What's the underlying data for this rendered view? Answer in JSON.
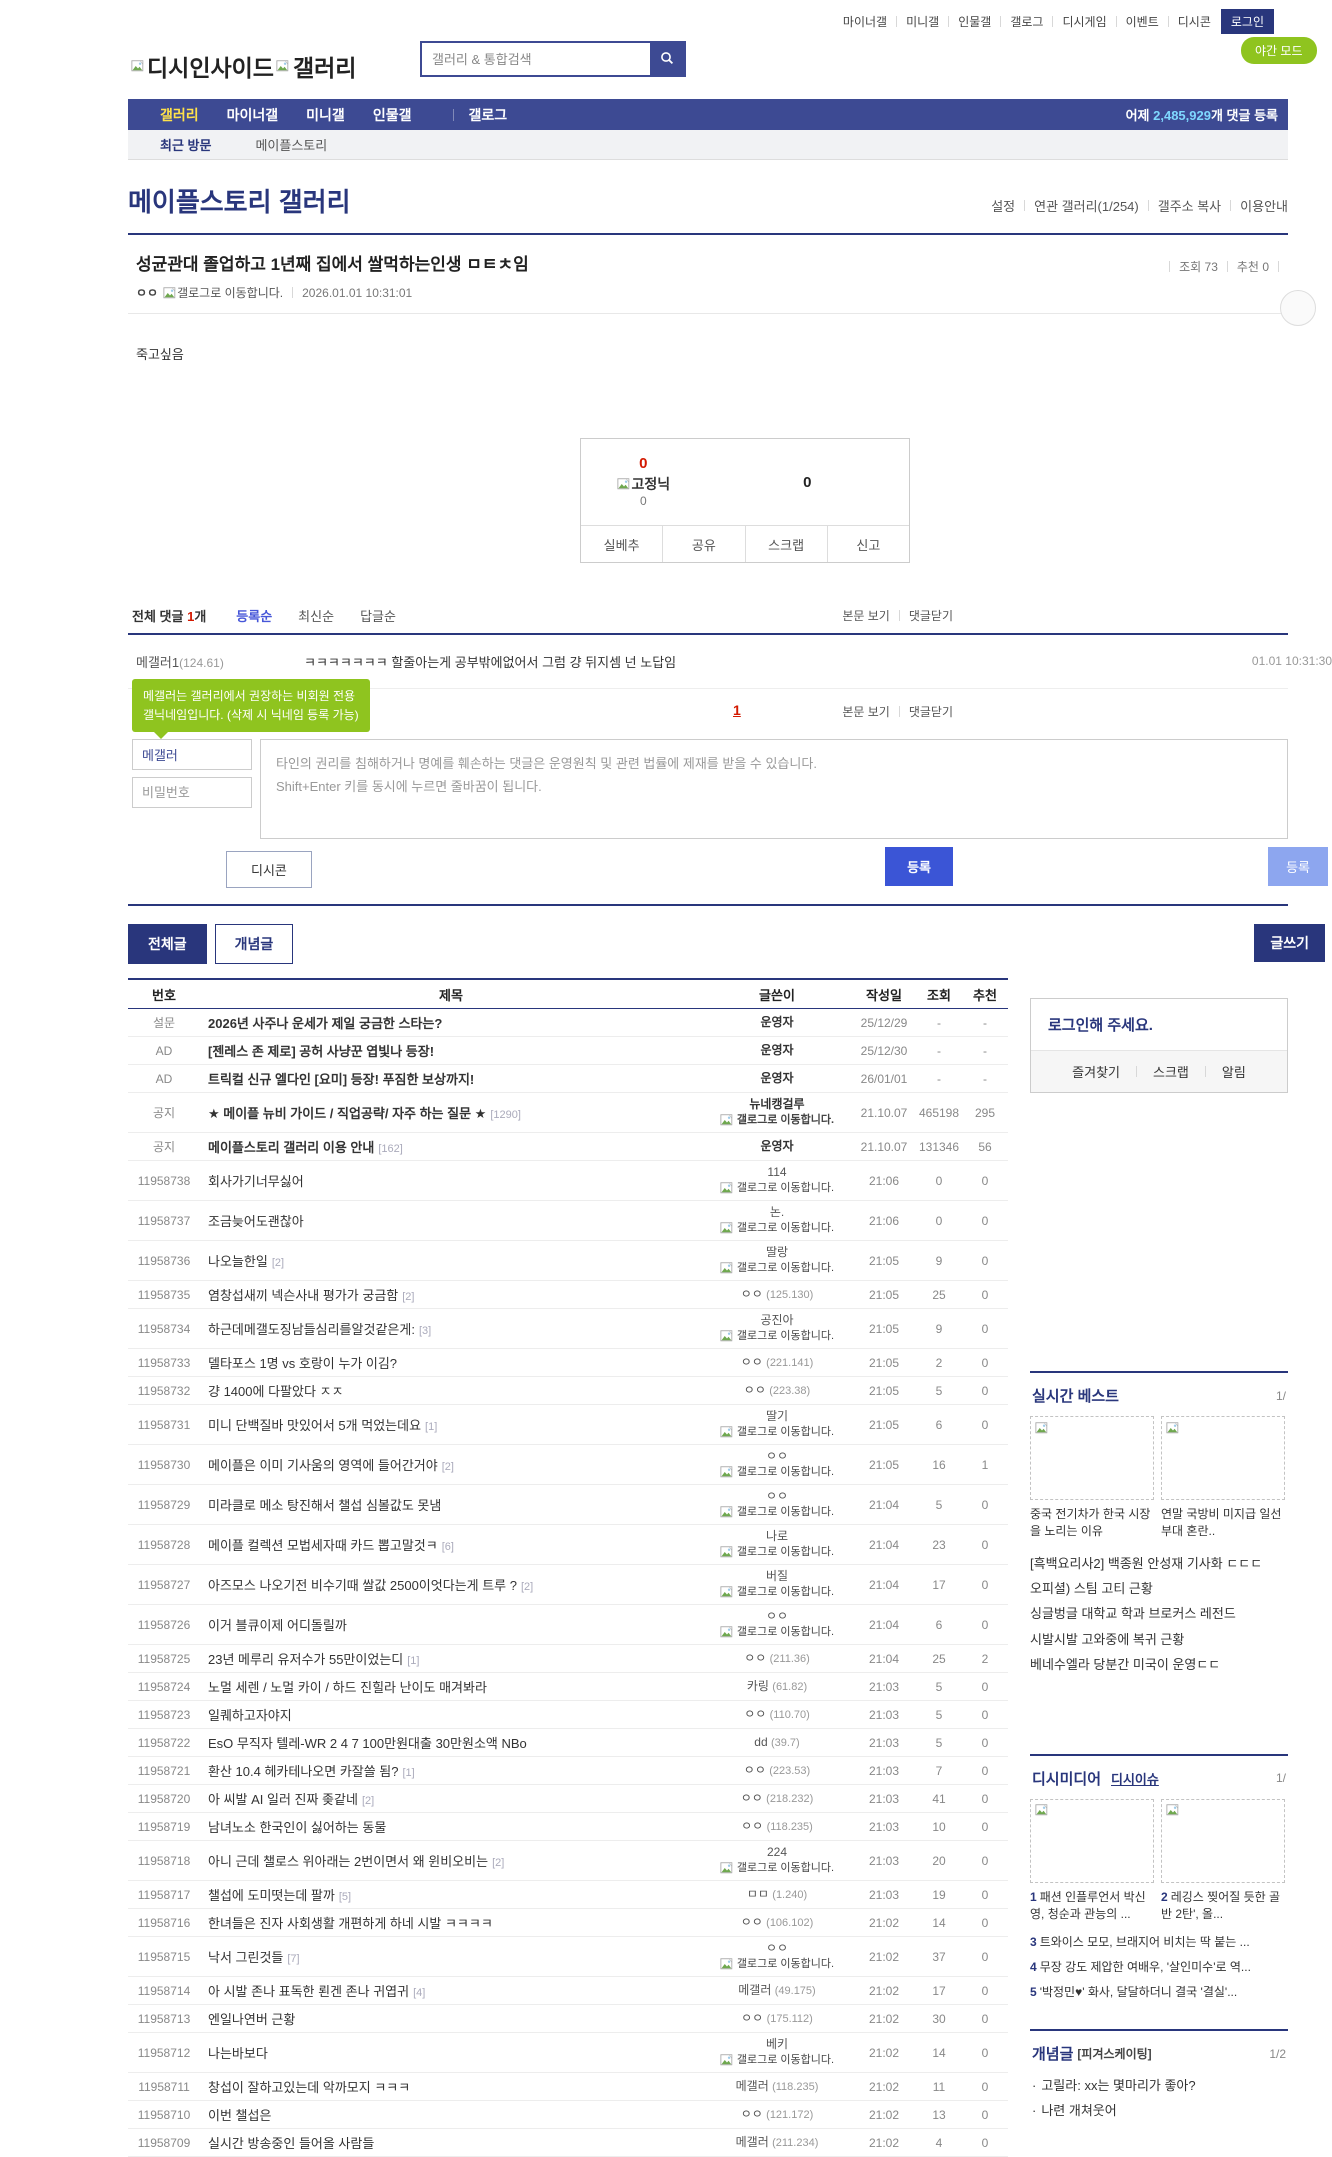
{
  "topbar": {
    "links": [
      "마이너갤",
      "미니갤",
      "인물갤",
      "갤로그",
      "디시게임",
      "이벤트",
      "디시콘"
    ],
    "login_label": "로그인",
    "night_mode_label": "야간 모드"
  },
  "header": {
    "logo_text_1": "디시인사이드",
    "logo_text_2": "갤러리",
    "search_placeholder": "갤러리 & 통합검색"
  },
  "nav": {
    "items": [
      "갤러리",
      "마이너갤",
      "미니갤",
      "인물갤",
      "갤로그"
    ],
    "active_item": "갤러리",
    "yesterday_prefix": "어제",
    "comment_count": "2,485,929",
    "yesterday_suffix": "개 댓글 등록"
  },
  "visited": {
    "label": "최근 방문",
    "items": [
      "메이플스토리"
    ]
  },
  "gallery": {
    "title": "메이플스토리 갤러리",
    "links": [
      "설정",
      "연관 갤러리(1/254)",
      "갤주소 복사",
      "이용안내"
    ]
  },
  "post": {
    "title": "성균관대 졸업하고 1년째 집에서 쌀먹하는인생 ㅁㅌㅊ임",
    "writer": "ㅇㅇ",
    "gallog_label": "갤로그로 이동합니다.",
    "date": "2026.01.01 10:31:01",
    "views_label": "조회",
    "views": "73",
    "rec_label": "추천",
    "rec": "0",
    "content": "죽고싶음",
    "vote": {
      "up": "0",
      "fixed_label": "고정닉",
      "up_fixed": "0",
      "down": "0",
      "buttons": [
        "실베추",
        "공유",
        "스크랩",
        "신고"
      ]
    }
  },
  "comments": {
    "total_label": "전체 댓글",
    "count": "1",
    "count_suffix": "개",
    "sorts": [
      "등록순",
      "최신순",
      "답글순"
    ],
    "active_sort": "등록순",
    "view_post_label": "본문 보기",
    "close_label": "댓글닫기",
    "page": "1",
    "list": [
      {
        "name": "메갤러1",
        "ip": "(124.61)",
        "text": "ㅋㅋㅋㅋㅋㅋㅋ 할줄아는게 공부밖에없어서 그럼 걍 뒤지셈 넌 노답임",
        "time": "01.01 10:31:30"
      }
    ],
    "form": {
      "tooltip_line1": "메갤러는 갤러리에서 권장하는 비회원 전용",
      "tooltip_line2": "갤닉네임입니다. (삭제 시 닉네임 등록 가능)",
      "nickname_value": "메갤러",
      "password_placeholder": "비밀번호",
      "notice_line1": "타인의 권리를 침해하거나 명예를 훼손하는 댓글은 운영원칙 및 관련 법률에 제재를 받을 수 있습니다.",
      "notice_line2": "Shift+Enter 키를 동시에 누르면 줄바꿈이 됩니다.",
      "dccon_label": "디시콘",
      "submit_label": "등록",
      "submit_edge_label": "등록"
    }
  },
  "list_tabs": {
    "all": "전체글",
    "concept": "개념글",
    "write": "글쓰기"
  },
  "board": {
    "headers": [
      "번호",
      "제목",
      "글쓴이",
      "작성일",
      "조회",
      "추천"
    ],
    "gallog_label": "갤로그로 이동합니다.",
    "rows": [
      {
        "no": "설문",
        "title": "2026년 사주나 운세가 제일 궁금한 스타는?",
        "cnt": "",
        "writer": "운영자",
        "gallog": false,
        "ip": "",
        "date": "25/12/29",
        "views": "-",
        "rec": "-",
        "bold": true
      },
      {
        "no": "AD",
        "title": "[젠레스 존 제로] 공허 사냥꾼 엽빛나 등장!",
        "cnt": "",
        "writer": "운영자",
        "gallog": false,
        "ip": "",
        "date": "25/12/30",
        "views": "-",
        "rec": "-",
        "bold": true
      },
      {
        "no": "AD",
        "title": "트릭컬 신규 엘다인 [요미] 등장! 푸짐한 보상까지!",
        "cnt": "",
        "writer": "운영자",
        "gallog": false,
        "ip": "",
        "date": "26/01/01",
        "views": "-",
        "rec": "-",
        "bold": true
      },
      {
        "no": "공지",
        "title": "★ 메이플 뉴비 가이드 / 직업공략/ 자주 하는 질문 ★",
        "cnt": "1290",
        "writer": "뉴네캥걸루",
        "gallog": true,
        "ip": "",
        "date": "21.10.07",
        "views": "465198",
        "rec": "295",
        "bold": true
      },
      {
        "no": "공지",
        "title": "메이플스토리 갤러리 이용 안내",
        "cnt": "162",
        "writer": "운영자",
        "gallog": false,
        "ip": "",
        "date": "21.10.07",
        "views": "131346",
        "rec": "56",
        "bold": true
      },
      {
        "no": "11958738",
        "title": "회사가기너무싫어",
        "cnt": "",
        "writer": "114",
        "gallog": true,
        "ip": "",
        "date": "21:06",
        "views": "0",
        "rec": "0",
        "bold": false
      },
      {
        "no": "11958737",
        "title": "조금늦어도괜찮아",
        "cnt": "",
        "writer": "논.",
        "gallog": true,
        "ip": "",
        "date": "21:06",
        "views": "0",
        "rec": "0",
        "bold": false
      },
      {
        "no": "11958736",
        "title": "나오늘한일",
        "cnt": "2",
        "writer": "딸랑",
        "gallog": true,
        "ip": "",
        "date": "21:05",
        "views": "9",
        "rec": "0",
        "bold": false
      },
      {
        "no": "11958735",
        "title": "염창섭새끼 넥슨사내 평가가 궁금함",
        "cnt": "2",
        "writer": "ㅇㅇ",
        "gallog": false,
        "ip": "(125.130)",
        "date": "21:05",
        "views": "25",
        "rec": "0",
        "bold": false
      },
      {
        "no": "11958734",
        "title": "하근데메갤도징남들심리를알것같은게:",
        "cnt": "3",
        "writer": "공진아",
        "gallog": true,
        "ip": "",
        "date": "21:05",
        "views": "9",
        "rec": "0",
        "bold": false
      },
      {
        "no": "11958733",
        "title": "델타포스 1명 vs 호랑이 누가 이김?",
        "cnt": "",
        "writer": "ㅇㅇ",
        "gallog": false,
        "ip": "(221.141)",
        "date": "21:05",
        "views": "2",
        "rec": "0",
        "bold": false
      },
      {
        "no": "11958732",
        "title": "걍 1400에 다팔았다 ㅈㅈ",
        "cnt": "",
        "writer": "ㅇㅇ",
        "gallog": false,
        "ip": "(223.38)",
        "date": "21:05",
        "views": "5",
        "rec": "0",
        "bold": false
      },
      {
        "no": "11958731",
        "title": "미니 단백질바 맛있어서 5개 먹었는데요",
        "cnt": "1",
        "writer": "딸기",
        "gallog": true,
        "ip": "",
        "date": "21:05",
        "views": "6",
        "rec": "0",
        "bold": false
      },
      {
        "no": "11958730",
        "title": "메이플은 이미 기사움의 영역에 들어간거야",
        "cnt": "2",
        "writer": "ㅇㅇ",
        "gallog": true,
        "ip": "",
        "date": "21:05",
        "views": "16",
        "rec": "1",
        "bold": false
      },
      {
        "no": "11958729",
        "title": "미라클로 메소 탕진해서 챌섭 심볼값도 못냄",
        "cnt": "",
        "writer": "ㅇㅇ",
        "gallog": true,
        "ip": "",
        "date": "21:04",
        "views": "5",
        "rec": "0",
        "bold": false
      },
      {
        "no": "11958728",
        "title": "메이플 컬렉션 모법세자때 카드 뽑고말것ㅋ",
        "cnt": "6",
        "writer": "나로",
        "gallog": true,
        "ip": "",
        "date": "21:04",
        "views": "23",
        "rec": "0",
        "bold": false
      },
      {
        "no": "11958727",
        "title": "아즈모스 나오기전 비수기때 쌀값 2500이엇다는게 트루 ?",
        "cnt": "2",
        "writer": "버질",
        "gallog": true,
        "ip": "",
        "date": "21:04",
        "views": "17",
        "rec": "0",
        "bold": false
      },
      {
        "no": "11958726",
        "title": "이거 블큐이제 어디돌릴까",
        "cnt": "",
        "writer": "ㅇㅇ",
        "gallog": true,
        "ip": "",
        "date": "21:04",
        "views": "6",
        "rec": "0",
        "bold": false
      },
      {
        "no": "11958725",
        "title": "23년 메루리 유저수가 55만이었는디",
        "cnt": "1",
        "writer": "ㅇㅇ",
        "gallog": false,
        "ip": "(211.36)",
        "date": "21:04",
        "views": "25",
        "rec": "2",
        "bold": false
      },
      {
        "no": "11958724",
        "title": "노멀 세렌 / 노멀 카이 / 하드 진힐라 난이도 매겨봐라",
        "cnt": "",
        "writer": "카링",
        "gallog": false,
        "ip": "(61.82)",
        "date": "21:03",
        "views": "5",
        "rec": "0",
        "bold": false
      },
      {
        "no": "11958723",
        "title": "일퀘하고자야지",
        "cnt": "",
        "writer": "ㅇㅇ",
        "gallog": false,
        "ip": "(110.70)",
        "date": "21:03",
        "views": "5",
        "rec": "0",
        "bold": false
      },
      {
        "no": "11958722",
        "title": "EsO 무직자 텔레-WR 2 4 7 100만원대출 30만원소액 NBo",
        "cnt": "",
        "writer": "dd",
        "gallog": false,
        "ip": "(39.7)",
        "date": "21:03",
        "views": "5",
        "rec": "0",
        "bold": false
      },
      {
        "no": "11958721",
        "title": "환산 10.4 헤카테나오면 카잘쓸 됨?",
        "cnt": "1",
        "writer": "ㅇㅇ",
        "gallog": false,
        "ip": "(223.53)",
        "date": "21:03",
        "views": "7",
        "rec": "0",
        "bold": false
      },
      {
        "no": "11958720",
        "title": "아 씨발 AI 일러 진짜 좆같네",
        "cnt": "2",
        "writer": "ㅇㅇ",
        "gallog": false,
        "ip": "(218.232)",
        "date": "21:03",
        "views": "41",
        "rec": "0",
        "bold": false
      },
      {
        "no": "11958719",
        "title": "남녀노소 한국인이 싫어하는 동물",
        "cnt": "",
        "writer": "ㅇㅇ",
        "gallog": false,
        "ip": "(118.235)",
        "date": "21:03",
        "views": "10",
        "rec": "0",
        "bold": false
      },
      {
        "no": "11958718",
        "title": "아니 근데 챌로스 위아래는 2번이면서 왜 윈비오비는",
        "cnt": "2",
        "writer": "224",
        "gallog": true,
        "ip": "",
        "date": "21:03",
        "views": "20",
        "rec": "0",
        "bold": false
      },
      {
        "no": "11958717",
        "title": "챌섭에 도미떳는데 팔까",
        "cnt": "5",
        "writer": "ㅁㅁ",
        "gallog": false,
        "ip": "(1.240)",
        "date": "21:03",
        "views": "19",
        "rec": "0",
        "bold": false
      },
      {
        "no": "11958716",
        "title": "한녀들은 진자 사회생활 개편하게 하네 시발 ㅋㅋㅋㅋ",
        "cnt": "",
        "writer": "ㅇㅇ",
        "gallog": false,
        "ip": "(106.102)",
        "date": "21:02",
        "views": "14",
        "rec": "0",
        "bold": false
      },
      {
        "no": "11958715",
        "title": "낙서 그린것들",
        "cnt": "7",
        "writer": "ㅇㅇ",
        "gallog": true,
        "ip": "",
        "date": "21:02",
        "views": "37",
        "rec": "0",
        "bold": false
      },
      {
        "no": "11958714",
        "title": "아 시발 존나 표독한 뢴겐 존나 귀엽귀",
        "cnt": "4",
        "writer": "메갤러",
        "gallog": false,
        "ip": "(49.175)",
        "date": "21:02",
        "views": "17",
        "rec": "0",
        "bold": false
      },
      {
        "no": "11958713",
        "title": "엔일나연버 근황",
        "cnt": "",
        "writer": "ㅇㅇ",
        "gallog": false,
        "ip": "(175.112)",
        "date": "21:02",
        "views": "30",
        "rec": "0",
        "bold": false
      },
      {
        "no": "11958712",
        "title": "나는바보다",
        "cnt": "",
        "writer": "베키",
        "gallog": true,
        "ip": "",
        "date": "21:02",
        "views": "14",
        "rec": "0",
        "bold": false
      },
      {
        "no": "11958711",
        "title": "창섭이 잘하고있는데 악까모지 ㅋㅋㅋ",
        "cnt": "",
        "writer": "메갤러",
        "gallog": false,
        "ip": "(118.235)",
        "date": "21:02",
        "views": "11",
        "rec": "0",
        "bold": false
      },
      {
        "no": "11958710",
        "title": "이번 챌섭은",
        "cnt": "",
        "writer": "ㅇㅇ",
        "gallog": false,
        "ip": "(121.172)",
        "date": "21:02",
        "views": "13",
        "rec": "0",
        "bold": false
      },
      {
        "no": "11958709",
        "title": "실시간 방송중인 들어올 사람들",
        "cnt": "",
        "writer": "메갤러",
        "gallog": false,
        "ip": "(211.234)",
        "date": "21:02",
        "views": "4",
        "rec": "0",
        "bold": false
      }
    ]
  },
  "sidebar": {
    "login": {
      "title": "로그인해 주세요.",
      "links": [
        "즐겨찾기",
        "스크랩",
        "알림"
      ]
    },
    "best": {
      "title": "실시간 베스트",
      "page": "1/",
      "thumbs": [
        {
          "caption": "중국 전기차가 한국 시장을 노리는 이유"
        },
        {
          "caption": "연말 국방비 미지급 일선 부대 혼란.."
        }
      ],
      "items": [
        "[흑백요리사2] 백종원 안성재 기사화 ㄷㄷㄷ",
        "오피셜) 스팀 고티 근황",
        "싱글벙글 대학교 학과 브로커스 레전드",
        "시발시발 고와중에 복귀 근황",
        "베네수엘라 당분간 미국이 운영ㄷㄷ"
      ]
    },
    "media": {
      "title": "디시미디어",
      "link": "디시이슈",
      "page": "1/",
      "thumbs": [
        {
          "num": "1",
          "caption": "패션 인플루언서 박신영, 청순과 관능의 ..."
        },
        {
          "num": "2",
          "caption": "레깅스 찢어질 듯한 골반 2탄', 올..."
        }
      ],
      "items": [
        {
          "num": "3",
          "text": "트와이스 모모, 브래지어 비치는 딱 붙는 ..."
        },
        {
          "num": "4",
          "text": "무장 강도 제압한 여배우, '살인미수'로 역..."
        },
        {
          "num": "5",
          "text": "'박정민♥' 화사, 달달하더니 결국 '결실'..."
        }
      ]
    },
    "concept": {
      "title": "개념글",
      "tag": "[피겨스케이팅]",
      "page": "1/2",
      "items": [
        "고릴라: xx는 몇마리가 좋아?",
        "나련 개쳐웃어"
      ]
    }
  },
  "colors": {
    "brand_navy": "#29367c",
    "nav_indigo": "#3d4a93",
    "active_yellow": "#ffe24a",
    "count_cyan": "#7fd8ff",
    "night_green": "#8fc41f",
    "alert_red": "#d31900",
    "submit_blue": "#3b55d6"
  }
}
